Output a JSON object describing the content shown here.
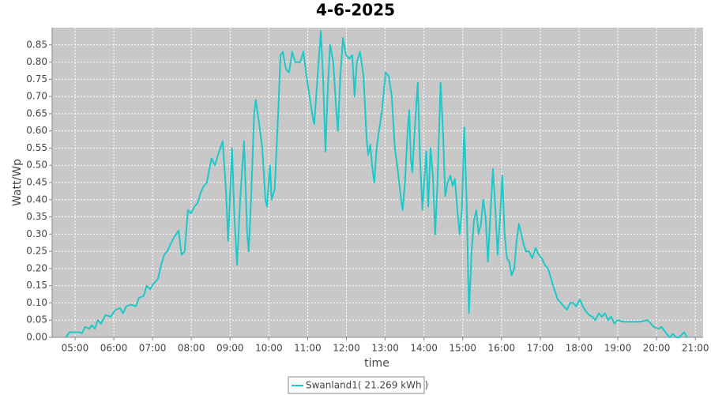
{
  "chart_data": {
    "type": "line",
    "title": "4-6-2025",
    "xlabel": "time",
    "ylabel": "Watt/Wp",
    "grid": true,
    "legend": "bottom",
    "x": [
      4.76,
      4.86,
      5.1,
      5.18,
      5.26,
      5.37,
      5.43,
      5.51,
      5.59,
      5.67,
      5.79,
      5.92,
      6.04,
      6.16,
      6.24,
      6.32,
      6.45,
      6.57,
      6.65,
      6.77,
      6.85,
      6.94,
      7.02,
      7.14,
      7.22,
      7.3,
      7.38,
      7.46,
      7.55,
      7.67,
      7.75,
      7.83,
      7.91,
      7.99,
      8.08,
      8.16,
      8.24,
      8.32,
      8.4,
      8.52,
      8.61,
      8.69,
      8.81,
      8.89,
      8.95,
      9.05,
      9.11,
      9.18,
      9.26,
      9.36,
      9.44,
      9.48,
      9.54,
      9.62,
      9.66,
      9.75,
      9.83,
      9.91,
      9.95,
      10.03,
      10.07,
      10.15,
      10.24,
      10.3,
      10.36,
      10.44,
      10.52,
      10.6,
      10.68,
      10.81,
      10.89,
      10.97,
      11.05,
      11.13,
      11.17,
      11.25,
      11.34,
      11.4,
      11.46,
      11.52,
      11.58,
      11.66,
      11.74,
      11.78,
      11.84,
      11.91,
      11.99,
      12.07,
      12.15,
      12.21,
      12.27,
      12.35,
      12.44,
      12.52,
      12.56,
      12.62,
      12.66,
      12.72,
      12.78,
      12.84,
      12.92,
      13.01,
      13.09,
      13.17,
      13.25,
      13.33,
      13.41,
      13.45,
      13.51,
      13.58,
      13.62,
      13.66,
      13.7,
      13.76,
      13.84,
      13.9,
      13.96,
      14.0,
      14.06,
      14.11,
      14.17,
      14.23,
      14.29,
      14.35,
      14.43,
      14.49,
      14.55,
      14.61,
      14.68,
      14.74,
      14.8,
      14.86,
      14.92,
      14.98,
      15.04,
      15.1,
      15.16,
      15.23,
      15.29,
      15.35,
      15.41,
      15.47,
      15.53,
      15.59,
      15.65,
      15.71,
      15.78,
      15.84,
      15.9,
      15.96,
      16.02,
      16.08,
      16.14,
      16.2,
      16.26,
      16.33,
      16.39,
      16.45,
      16.51,
      16.57,
      16.63,
      16.71,
      16.79,
      16.88,
      16.96,
      17.04,
      17.12,
      17.2,
      17.28,
      17.36,
      17.45,
      17.53,
      17.61,
      17.69,
      17.77,
      17.85,
      17.93,
      18.02,
      18.1,
      18.18,
      18.26,
      18.34,
      18.42,
      18.51,
      18.59,
      18.67,
      18.75,
      18.83,
      18.91,
      18.99,
      19.16,
      19.36,
      19.56,
      19.77,
      19.85,
      19.93,
      20.05,
      20.13,
      20.26,
      20.34,
      20.42,
      20.5,
      20.58,
      20.71,
      20.79
    ],
    "series": [
      {
        "name": "Swanland1( 21.269 kWh )",
        "color": "#1cc8c8",
        "values": [
          0,
          0.015,
          0.015,
          0.012,
          0.03,
          0.025,
          0.035,
          0.025,
          0.05,
          0.04,
          0.065,
          0.06,
          0.08,
          0.085,
          0.07,
          0.09,
          0.095,
          0.09,
          0.115,
          0.12,
          0.15,
          0.14,
          0.155,
          0.17,
          0.21,
          0.24,
          0.25,
          0.27,
          0.29,
          0.31,
          0.24,
          0.25,
          0.37,
          0.36,
          0.38,
          0.39,
          0.42,
          0.44,
          0.45,
          0.52,
          0.5,
          0.53,
          0.57,
          0.43,
          0.28,
          0.55,
          0.35,
          0.21,
          0.4,
          0.57,
          0.3,
          0.25,
          0.4,
          0.65,
          0.69,
          0.62,
          0.55,
          0.4,
          0.38,
          0.5,
          0.4,
          0.43,
          0.65,
          0.82,
          0.83,
          0.78,
          0.77,
          0.83,
          0.8,
          0.8,
          0.83,
          0.76,
          0.7,
          0.64,
          0.62,
          0.75,
          0.89,
          0.75,
          0.54,
          0.72,
          0.85,
          0.8,
          0.66,
          0.6,
          0.75,
          0.87,
          0.82,
          0.81,
          0.82,
          0.7,
          0.8,
          0.83,
          0.76,
          0.58,
          0.53,
          0.56,
          0.5,
          0.45,
          0.55,
          0.6,
          0.66,
          0.77,
          0.76,
          0.7,
          0.55,
          0.48,
          0.4,
          0.37,
          0.45,
          0.6,
          0.66,
          0.52,
          0.48,
          0.6,
          0.74,
          0.52,
          0.37,
          0.44,
          0.54,
          0.38,
          0.55,
          0.47,
          0.3,
          0.45,
          0.74,
          0.6,
          0.41,
          0.45,
          0.47,
          0.44,
          0.46,
          0.37,
          0.3,
          0.37,
          0.61,
          0.4,
          0.07,
          0.25,
          0.34,
          0.37,
          0.3,
          0.33,
          0.4,
          0.35,
          0.22,
          0.35,
          0.49,
          0.38,
          0.24,
          0.34,
          0.47,
          0.3,
          0.23,
          0.22,
          0.18,
          0.2,
          0.28,
          0.33,
          0.3,
          0.27,
          0.25,
          0.25,
          0.23,
          0.26,
          0.24,
          0.23,
          0.21,
          0.2,
          0.17,
          0.14,
          0.11,
          0.1,
          0.09,
          0.08,
          0.1,
          0.1,
          0.09,
          0.11,
          0.09,
          0.075,
          0.065,
          0.06,
          0.05,
          0.07,
          0.06,
          0.07,
          0.05,
          0.06,
          0.04,
          0.05,
          0.045,
          0.045,
          0.045,
          0.05,
          0.04,
          0.03,
          0.025,
          0.03,
          0.01,
          0,
          0.01,
          0,
          0,
          0.015,
          0
        ]
      }
    ],
    "xlim": [
      4.41,
      21.2
    ],
    "xticks": [
      {
        "value": 5,
        "label": "05:00"
      },
      {
        "value": 6,
        "label": "06:00"
      },
      {
        "value": 7,
        "label": "07:00"
      },
      {
        "value": 8,
        "label": "08:00"
      },
      {
        "value": 9,
        "label": "09:00"
      },
      {
        "value": 10,
        "label": "10:00"
      },
      {
        "value": 11,
        "label": "11:00"
      },
      {
        "value": 12,
        "label": "12:00"
      },
      {
        "value": 13,
        "label": "13:00"
      },
      {
        "value": 14,
        "label": "14:00"
      },
      {
        "value": 15,
        "label": "15:00"
      },
      {
        "value": 16,
        "label": "16:00"
      },
      {
        "value": 17,
        "label": "17:00"
      },
      {
        "value": 18,
        "label": "18:00"
      },
      {
        "value": 19,
        "label": "19:00"
      },
      {
        "value": 20,
        "label": "20:00"
      },
      {
        "value": 21,
        "label": "21:00"
      }
    ],
    "ylim": [
      0,
      0.9
    ],
    "yticks": [
      {
        "value": 0,
        "label": "0.00"
      },
      0.05,
      {
        "value": 0.1,
        "label": "0.10"
      },
      0.15,
      {
        "value": 0.2,
        "label": "0.20"
      },
      0.25,
      {
        "value": 0.3,
        "label": "0.30"
      },
      0.35,
      {
        "value": 0.4,
        "label": "0.40"
      },
      0.45,
      {
        "value": 0.5,
        "label": "0.50"
      },
      0.55,
      {
        "value": 0.6,
        "label": "0.60"
      },
      0.65,
      {
        "value": 0.7,
        "label": "0.70"
      },
      0.75,
      {
        "value": 0.8,
        "label": "0.80"
      },
      0.85
    ]
  }
}
